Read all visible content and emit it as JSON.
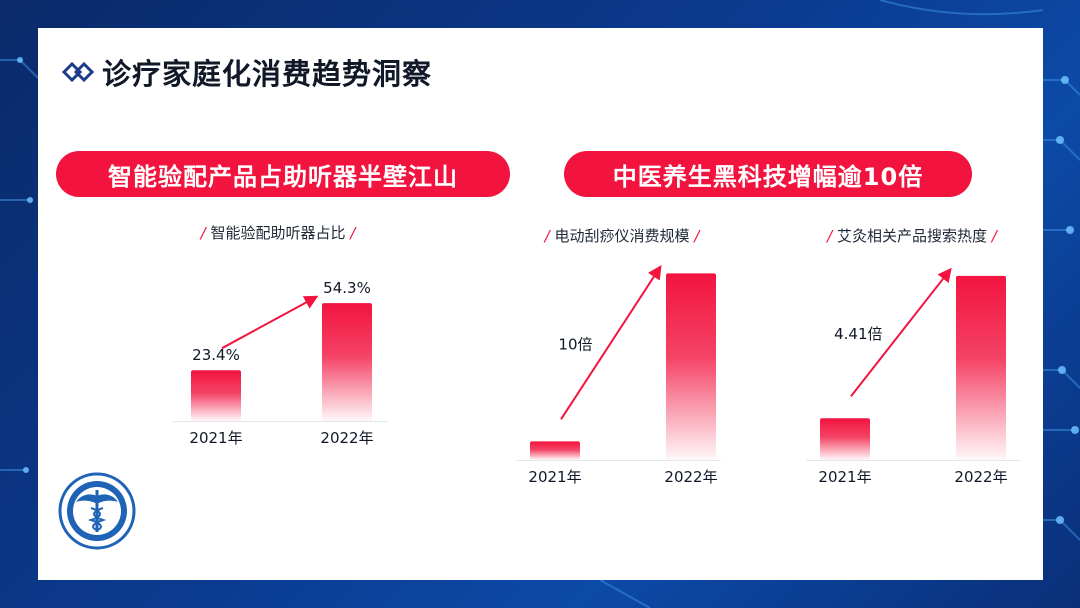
{
  "page": {
    "title": "诊疗家庭化消费趋势洞察",
    "pill_left": "智能验配产品占助听器半壁江山",
    "pill_right": "中医养生黑科技增幅逾10倍",
    "accent_color": "#f2143f",
    "logo_icon": "medical-caduceus-seal-icon"
  },
  "chart_data": [
    {
      "type": "bar",
      "title": "智能验配助听器占比",
      "categories": [
        "2021年",
        "2022年"
      ],
      "values": [
        23.4,
        54.3
      ],
      "data_labels": [
        "23.4%",
        "54.3%"
      ],
      "arrow_label": "",
      "ylim": [
        0,
        70
      ]
    },
    {
      "type": "bar",
      "title": "电动刮痧仪消费规模",
      "categories": [
        "2021年",
        "2022年"
      ],
      "values": [
        1,
        10
      ],
      "data_labels": [
        "",
        ""
      ],
      "arrow_label": "10倍",
      "ylim": [
        0,
        10.5
      ]
    },
    {
      "type": "bar",
      "title": "艾灸相关产品搜索热度",
      "categories": [
        "2021年",
        "2022年"
      ],
      "values": [
        1,
        4.41
      ],
      "data_labels": [
        "",
        ""
      ],
      "arrow_label": "4.41倍",
      "ylim": [
        0,
        4.6
      ]
    }
  ]
}
